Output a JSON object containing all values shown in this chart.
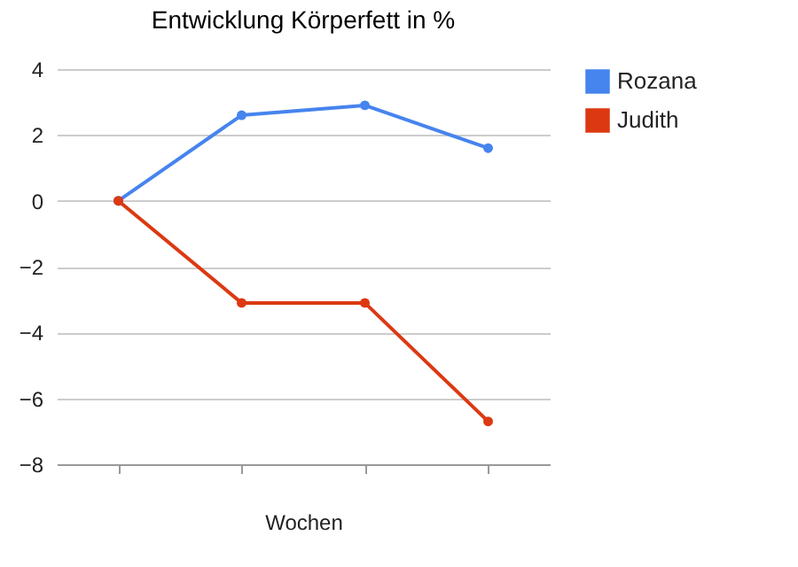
{
  "chart_data": {
    "type": "line",
    "title": "Entwicklung Körperfett in %",
    "xlabel": "Wochen",
    "categories": [
      null,
      null,
      null,
      null
    ],
    "series": [
      {
        "name": "Rozana",
        "color": "#4684ee",
        "values": [
          0,
          2.6,
          2.9,
          1.6
        ]
      },
      {
        "name": "Judith",
        "color": "#dc3912",
        "values": [
          0,
          -3.1,
          -3.1,
          -6.7
        ]
      }
    ],
    "ylim": [
      -8,
      4
    ],
    "yticks": [
      -8,
      -6,
      -4,
      -2,
      0,
      2,
      4
    ],
    "grid": "y",
    "legend": "right",
    "marker": "circle",
    "line_style": "solid",
    "tick_labels": "y"
  }
}
